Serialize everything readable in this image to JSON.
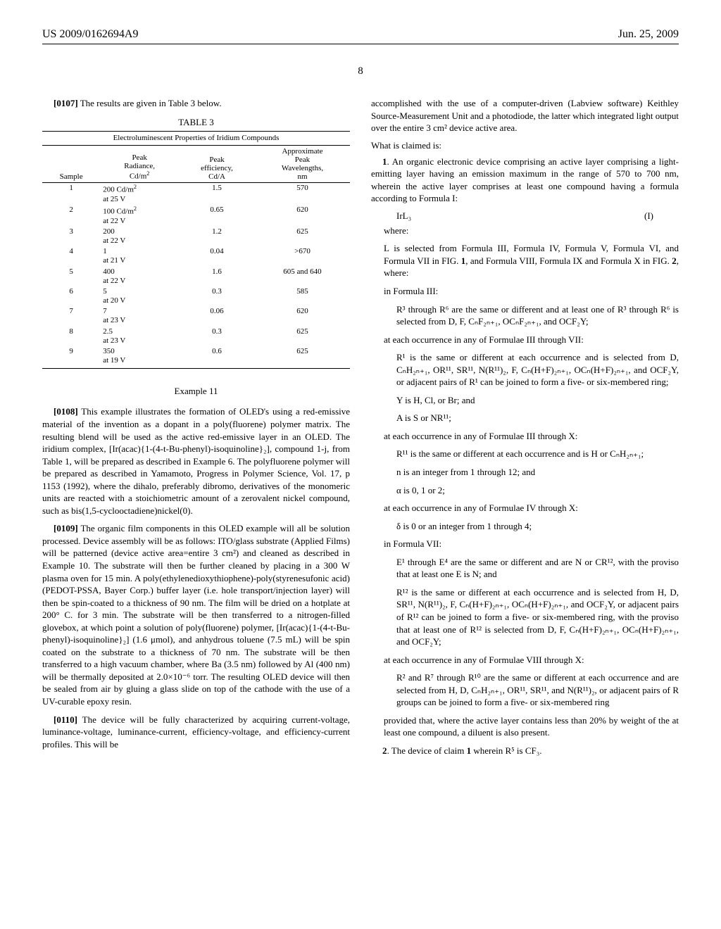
{
  "header": {
    "patent_id": "US 2009/0162694A9",
    "date": "Jun. 25, 2009"
  },
  "page_number": "8",
  "left": {
    "para_0107": "The results are given in Table 3 below.",
    "table3": {
      "title": "TABLE 3",
      "caption": "Electroluminescent Properties of Iridium Compounds",
      "headers": [
        "Sample",
        "Peak Radiance, Cd/m²",
        "Peak efficiency, Cd/A",
        "Approximate Peak Wavelengths, nm"
      ],
      "rows": [
        [
          "1",
          "200 Cd/m²\nat 25 V",
          "1.5",
          "570"
        ],
        [
          "2",
          "100 Cd/m²\nat 22 V",
          "0.65",
          "620"
        ],
        [
          "3",
          "200\nat 22 V",
          "1.2",
          "625"
        ],
        [
          "4",
          "1\nat 21 V",
          "0.04",
          ">670"
        ],
        [
          "5",
          "400\nat 22 V",
          "1.6",
          "605 and 640"
        ],
        [
          "6",
          "5\nat 20 V",
          "0.3",
          "585"
        ],
        [
          "7",
          "7\nat 23 V",
          "0.06",
          "620"
        ],
        [
          "8",
          "2.5\nat 23 V",
          "0.3",
          "625"
        ],
        [
          "9",
          "350\nat 19 V",
          "0.6",
          "625"
        ]
      ]
    },
    "example11_title": "Example 11",
    "para_0108": "This example illustrates the formation of OLED's using a red-emissive material of the invention as a dopant in a poly(fluorene) polymer matrix. The resulting blend will be used as the active red-emissive layer in an OLED. The iridium complex, [Ir(acac){1-(4-t-Bu-phenyl)-isoquinoline}₂], compound 1-j, from Table 1, will be prepared as described in Example 6. The polyfluorene polymer will be prepared as described in Yamamoto, Progress in Polymer Science, Vol. 17, p 1153 (1992), where the dihalo, preferably dibromo, derivatives of the monomeric units are reacted with a stoichiometric amount of a zerovalent nickel compound, such as bis(1,5-cyclooctadiene)nickel(0).",
    "para_0109": "The organic film components in this OLED example will all be solution processed. Device assembly will be as follows: ITO/glass substrate (Applied Films) will be patterned (device active area=entire 3 cm²) and cleaned as described in Example 10. The substrate will then be further cleaned by placing in a 300 W plasma oven for 15 min. A poly(ethylenedioxythiophene)-poly(styrenesufonic acid) (PEDOT-PSSA, Bayer Corp.) buffer layer (i.e. hole transport/injection layer) will then be spin-coated to a thickness of 90 nm. The film will be dried on a hotplate at 200° C. for 3 min. The substrate will be then transferred to a nitrogen-filled glovebox, at which point a solution of poly(fluorene) polymer, [Ir(acac){1-(4-t-Bu-phenyl)-isoquinoline}₂] (1.6 μmol), and anhydrous toluene (7.5 mL) will be spin coated on the substrate to a thickness of 70 nm. The substrate will be then transferred to a high vacuum chamber, where Ba (3.5 nm) followed by Al (400 nm) will be thermally deposited at 2.0×10⁻⁶ torr. The resulting OLED device will then be sealed from air by gluing a glass slide on top of the cathode with the use of a UV-curable epoxy resin.",
    "para_0110": "The device will be fully characterized by acquiring current-voltage, luminance-voltage, luminance-current, efficiency-voltage, and efficiency-current profiles. This will be"
  },
  "right": {
    "continuation": "accomplished with the use of a computer-driven (Labview software) Keithley Source-Measurement Unit and a photodiode, the latter which integrated light output over the entire 3 cm² device active area.",
    "claims_heading": "What is claimed is:",
    "claim1_intro": "1. An organic electronic device comprising an active layer comprising a light-emitting layer having an emission maximum in the range of 570 to 700 nm, wherein the active layer comprises at least one compound having a formula according to Formula I:",
    "formula": "IrL₃",
    "formula_num": "(I)",
    "where": "where:",
    "l_selected": "L is selected from Formula III, Formula IV, Formula V, Formula VI, and Formula VII in FIG. 1, and Formula VIII, Formula IX and Formula X in FIG. 2, where:",
    "in_formula3": "in Formula III:",
    "r3_r6": "R³ through R⁶ are the same or different and at least one of R³ through R⁶ is selected from D, F, CₙF₂ₙ₊₁, OCₙF₂ₙ₊₁, and OCF₂Y;",
    "at_each_iii_vii": "at each occurrence in any of Formulae III through VII:",
    "r1_text": "R¹ is the same or different at each occurrence and is selected from D, CₙH₂ₙ₊₁, OR¹¹, SR¹¹, N(R¹¹)₂, F, Cₙ(H+F)₂ₙ₊₁, OCₙ(H+F)₂ₙ₊₁, and OCF₂Y, or adjacent pairs of R¹ can be joined to form a five- or six-membered ring;",
    "y_is": "Y is H, Cl, or Br; and",
    "a_is": "A is S or NR¹¹;",
    "at_each_iii_x": "at each occurrence in any of Formulae III through X:",
    "r11_text": "R¹¹ is the same or different at each occurrence and is H or CₙH₂ₙ₊₁;",
    "n_is": "n is an integer from 1 through 12; and",
    "alpha_is": "α is 0, 1 or 2;",
    "at_each_iv_x": "at each occurrence in any of Formulae IV through X:",
    "delta_is": "δ is 0 or an integer from 1 through 4;",
    "in_formula7": "in Formula VII:",
    "e1_e4": "E¹ through E⁴ are the same or different and are N or CR¹², with the proviso that at least one E is N; and",
    "r12_text": "R¹² is the same or different at each occurrence and is selected from H, D, SR¹¹, N(R¹¹)₂, F, Cₙ(H+F)₂ₙ₊₁, OCₙ(H+F)₂ₙ₊₁, and OCF₂Y, or adjacent pairs of R¹² can be joined to form a five- or six-membered ring, with the proviso that at least one of R¹² is selected from D, F, Cₙ(H+F)₂ₙ₊₁, OCₙ(H+F)₂ₙ₊₁, and OCF₂Y;",
    "at_each_viii_x": "at each occurrence in any of Formulae VIII through X:",
    "r2_r7_r10": "R² and R⁷ through R¹⁰ are the same or different at each occurrence and are selected from H, D, CₙH₂ₙ₊₁, OR¹¹, SR¹¹, and N(R¹¹)₂, or adjacent pairs of R groups can be joined to form a five- or six-membered ring",
    "provided": "provided that, where the active layer contains less than 20% by weight of the at least one compound, a diluent is also present.",
    "claim2": "2. The device of claim 1 wherein R⁵ is CF₃."
  }
}
